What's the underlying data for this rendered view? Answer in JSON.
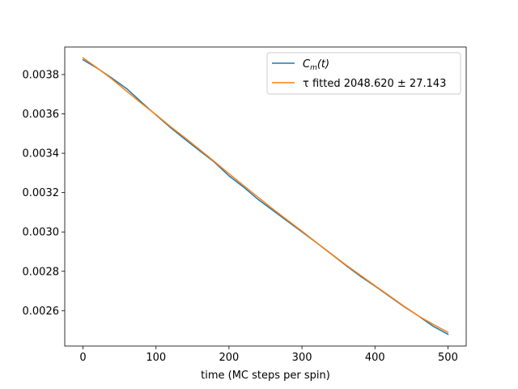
{
  "chart_data": {
    "type": "line",
    "title": "",
    "xlabel": "time (MC steps per spin)",
    "ylabel": "",
    "xlim": [
      -25,
      525
    ],
    "ylim": [
      0.00242,
      0.00394
    ],
    "x_ticks": [
      0,
      100,
      200,
      300,
      400,
      500
    ],
    "x_tick_labels": [
      "0",
      "100",
      "200",
      "300",
      "400",
      "500"
    ],
    "y_ticks": [
      0.0026,
      0.0028,
      0.003,
      0.0032,
      0.0034,
      0.0036,
      0.0038
    ],
    "y_tick_labels": [
      "0.0026",
      "0.0028",
      "0.0030",
      "0.0032",
      "0.0034",
      "0.0036",
      "0.0038"
    ],
    "grid": false,
    "legend_position": "top-right",
    "series": [
      {
        "name": "C_m(t)",
        "legend_label": {
          "main": "C",
          "sub": "m",
          "tail": "(t)"
        },
        "color": "#1f77b4",
        "x": [
          0,
          20,
          40,
          60,
          80,
          100,
          120,
          140,
          160,
          180,
          200,
          220,
          240,
          260,
          280,
          300,
          320,
          340,
          360,
          380,
          400,
          420,
          440,
          460,
          480,
          500
        ],
        "y": [
          0.003875,
          0.003831,
          0.003781,
          0.003728,
          0.00366,
          0.003594,
          0.00353,
          0.00347,
          0.003412,
          0.003355,
          0.003285,
          0.003228,
          0.003165,
          0.00311,
          0.003055,
          0.003,
          0.002945,
          0.002888,
          0.00283,
          0.002775,
          0.002725,
          0.002672,
          0.00262,
          0.002572,
          0.00252,
          0.00248
        ]
      },
      {
        "name": "τ fitted 2048.620 ± 27.143",
        "legend_label": {
          "main": "τ fitted 2048.620 ± 27.143",
          "sub": "",
          "tail": ""
        },
        "color": "#ff7f0e",
        "x": [
          0,
          20,
          40,
          60,
          80,
          100,
          120,
          140,
          160,
          180,
          200,
          220,
          240,
          260,
          280,
          300,
          320,
          340,
          360,
          380,
          400,
          420,
          440,
          460,
          480,
          500
        ],
        "y": [
          0.003885,
          0.003832,
          0.003776,
          0.003715,
          0.003654,
          0.003596,
          0.003535,
          0.003478,
          0.003418,
          0.003358,
          0.003296,
          0.003236,
          0.003176,
          0.003117,
          0.00306,
          0.003004,
          0.002946,
          0.002889,
          0.002833,
          0.00278,
          0.002727,
          0.002675,
          0.002622,
          0.002572,
          0.00253,
          0.00249
        ]
      }
    ]
  }
}
